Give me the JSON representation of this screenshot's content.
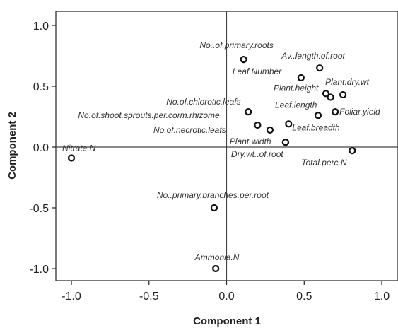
{
  "chart_data": {
    "type": "scatter",
    "xlabel": "Component 1",
    "ylabel": "Component 2",
    "xlim": [
      -1.1,
      1.1
    ],
    "ylim": [
      -1.1,
      1.1
    ],
    "x_ticks": [
      "-1.0",
      "-0.5",
      "0.0",
      "0.5",
      "1.0"
    ],
    "y_ticks": [
      "1.0",
      "0.5",
      "0.0",
      "-0.5",
      "-1.0"
    ],
    "x_tick_values": [
      -1.0,
      -0.5,
      0.0,
      0.5,
      1.0
    ],
    "y_tick_values": [
      1.0,
      0.5,
      0.0,
      -0.5,
      -1.0
    ],
    "reference_lines": [
      "x=0",
      "y=0"
    ],
    "grid": false,
    "points": [
      {
        "label": "No..of.primary.roots",
        "x": 0.11,
        "y": 0.72
      },
      {
        "label": "Av..length.of.root",
        "x": 0.6,
        "y": 0.65
      },
      {
        "label": "Leaf.Number",
        "x": 0.48,
        "y": 0.57
      },
      {
        "label": "Plant.height",
        "x": 0.64,
        "y": 0.44
      },
      {
        "label": "Plant.dry.wt",
        "x": 0.75,
        "y": 0.43
      },
      {
        "label": "No.of.chlorotic.leafs",
        "x": 0.14,
        "y": 0.29
      },
      {
        "label": "No.of.shoot.sprouts.per.corm.rhizome",
        "x": 0.2,
        "y": 0.18
      },
      {
        "label": "Leaf.length",
        "x": 0.59,
        "y": 0.26
      },
      {
        "label": "Foliar.yield",
        "x": 0.7,
        "y": 0.29
      },
      {
        "label": "No.of.necrotic.leafs",
        "x": 0.28,
        "y": 0.14
      },
      {
        "label": "Leaf.breadth",
        "x": 0.4,
        "y": 0.19
      },
      {
        "label": "Plant.width",
        "x": 0.38,
        "y": 0.04
      },
      {
        "label": "Dry.wt..of.root",
        "x": 0.38,
        "y": 0.04
      },
      {
        "label": "Total.perc.N",
        "x": 0.81,
        "y": -0.03
      },
      {
        "label": "Nitrate.N",
        "x": -1.0,
        "y": -0.09
      },
      {
        "label": "No..primary.branches.per.root",
        "x": -0.08,
        "y": -0.5
      },
      {
        "label": "Ammonia.N",
        "x": -0.07,
        "y": -1.0
      }
    ],
    "unlabeled_points": [
      {
        "x": 0.67,
        "y": 0.41
      }
    ]
  }
}
